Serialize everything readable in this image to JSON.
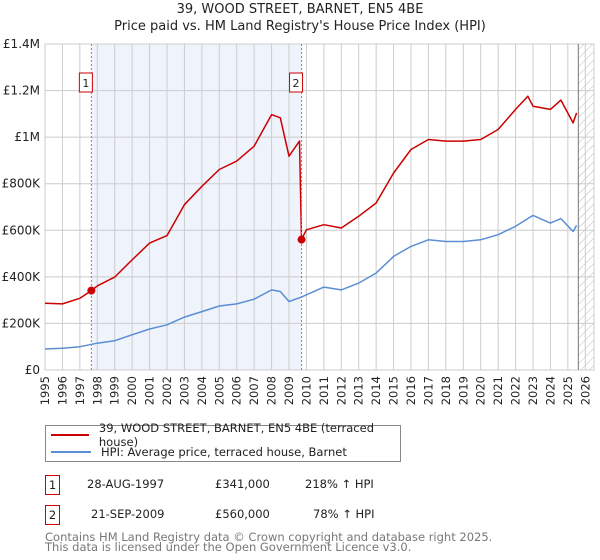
{
  "title_line1": "39, WOOD STREET, BARNET, EN5 4BE",
  "title_line2": "Price paid vs. HM Land Registry's House Price Index (HPI)",
  "colors": {
    "property": "#cc0000",
    "hpi": "#5b8fd4",
    "shade": "#eef3fc",
    "grid": "#cccccc"
  },
  "chart_data": {
    "type": "line",
    "title": "39, WOOD STREET, BARNET, EN5 4BE — Price paid vs. HM Land Registry's House Price Index (HPI)",
    "xlim": [
      1995,
      2026.5
    ],
    "ylim": [
      0,
      1400000
    ],
    "x_ticks": [
      1995,
      1996,
      1997,
      1998,
      1999,
      2000,
      2001,
      2002,
      2003,
      2004,
      2005,
      2006,
      2007,
      2008,
      2009,
      2010,
      2011,
      2012,
      2013,
      2014,
      2015,
      2016,
      2017,
      2018,
      2019,
      2020,
      2021,
      2022,
      2023,
      2024,
      2025,
      2026
    ],
    "y_ticks": [
      0,
      200000,
      400000,
      600000,
      800000,
      1000000,
      1200000,
      1400000
    ],
    "y_tick_labels": [
      "£0",
      "£200K",
      "£400K",
      "£600K",
      "£800K",
      "£1M",
      "£1.2M",
      "£1.4M"
    ],
    "grid": true,
    "shaded_range": [
      1997.66,
      2009.72
    ],
    "forecast_hatch_from": 2025.6,
    "series": [
      {
        "name": "39, WOOD STREET, BARNET, EN5 4BE (terraced house)",
        "color": "#cc0000",
        "points": [
          [
            1995,
            287000
          ],
          [
            1996,
            284000
          ],
          [
            1997,
            308000
          ],
          [
            1997.66,
            341000
          ],
          [
            1998,
            361000
          ],
          [
            1999,
            399000
          ],
          [
            2000,
            473000
          ],
          [
            2001,
            545000
          ],
          [
            2002,
            577000
          ],
          [
            2003,
            710000
          ],
          [
            2004,
            789000
          ],
          [
            2005,
            861000
          ],
          [
            2006,
            897000
          ],
          [
            2007,
            961000
          ],
          [
            2008,
            1097000
          ],
          [
            2008.5,
            1083000
          ],
          [
            2009,
            918000
          ],
          [
            2009.6,
            983000
          ],
          [
            2009.72,
            560000
          ],
          [
            2010,
            602000
          ],
          [
            2011,
            624000
          ],
          [
            2012,
            610000
          ],
          [
            2013,
            660000
          ],
          [
            2014,
            717000
          ],
          [
            2015,
            846000
          ],
          [
            2016,
            947000
          ],
          [
            2017,
            990000
          ],
          [
            2018,
            983000
          ],
          [
            2019,
            983000
          ],
          [
            2020,
            990000
          ],
          [
            2021,
            1033000
          ],
          [
            2022,
            1119000
          ],
          [
            2022.7,
            1176000
          ],
          [
            2023,
            1133000
          ],
          [
            2024,
            1119000
          ],
          [
            2024.6,
            1159000
          ],
          [
            2025.3,
            1061000
          ],
          [
            2025.5,
            1104000
          ]
        ]
      },
      {
        "name": "HPI: Average price, terraced house, Barnet",
        "color": "#5b8fd4",
        "points": [
          [
            1995,
            90000
          ],
          [
            1996,
            93000
          ],
          [
            1997,
            100000
          ],
          [
            1998,
            115000
          ],
          [
            1999,
            126000
          ],
          [
            2000,
            151000
          ],
          [
            2001,
            176000
          ],
          [
            2002,
            194000
          ],
          [
            2003,
            227000
          ],
          [
            2004,
            251000
          ],
          [
            2005,
            275000
          ],
          [
            2006,
            284000
          ],
          [
            2007,
            304000
          ],
          [
            2008,
            344000
          ],
          [
            2008.5,
            337000
          ],
          [
            2009,
            294000
          ],
          [
            2009.72,
            313000
          ],
          [
            2010,
            323000
          ],
          [
            2011,
            356000
          ],
          [
            2012,
            344000
          ],
          [
            2013,
            373000
          ],
          [
            2014,
            416000
          ],
          [
            2015,
            488000
          ],
          [
            2016,
            531000
          ],
          [
            2017,
            559000
          ],
          [
            2018,
            552000
          ],
          [
            2019,
            552000
          ],
          [
            2020,
            559000
          ],
          [
            2021,
            581000
          ],
          [
            2022,
            617000
          ],
          [
            2023,
            664000
          ],
          [
            2024,
            631000
          ],
          [
            2024.6,
            650000
          ],
          [
            2025.3,
            595000
          ],
          [
            2025.5,
            621000
          ]
        ]
      }
    ],
    "annotations": [
      {
        "label": "1",
        "x": 1997.66,
        "y": 341000
      },
      {
        "label": "2",
        "x": 2009.72,
        "y": 560000
      }
    ]
  },
  "legend": [
    {
      "label": "39, WOOD STREET, BARNET, EN5 4BE (terraced house)"
    },
    {
      "label": "HPI: Average price, terraced house, Barnet"
    }
  ],
  "transactions": [
    {
      "num": "1",
      "date": "28-AUG-1997",
      "price": "£341,000",
      "hpi": "218% ↑ HPI"
    },
    {
      "num": "2",
      "date": "21-SEP-2009",
      "price": "£560,000",
      "hpi": "78% ↑ HPI"
    }
  ],
  "footer_line1": "Contains HM Land Registry data © Crown copyright and database right 2025.",
  "footer_line2": "This data is licensed under the Open Government Licence v3.0."
}
